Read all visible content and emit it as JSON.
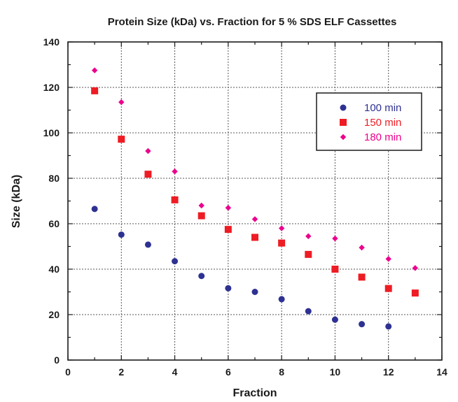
{
  "chart_data": {
    "type": "scatter",
    "title": "Protein Size (kDa) vs. Fraction for 5 % SDS ELF Cassettes",
    "xlabel": "Fraction",
    "ylabel": "Size (kDa)",
    "xlim": [
      0,
      14
    ],
    "ylim": [
      0,
      140
    ],
    "xticks": [
      0,
      2,
      4,
      6,
      8,
      10,
      12,
      14
    ],
    "yticks": [
      0,
      20,
      40,
      60,
      80,
      100,
      120,
      140
    ],
    "grid": true,
    "legend_position": "top-right",
    "series": [
      {
        "name": "100 min",
        "marker": "circle",
        "color": "#2e3192",
        "x": [
          1,
          2,
          3,
          4,
          5,
          6,
          7,
          8,
          9,
          10,
          11,
          12
        ],
        "y": [
          66.5,
          55.2,
          50.8,
          43.5,
          37,
          31.6,
          30,
          26.8,
          21.5,
          17.8,
          15.8,
          14.8
        ]
      },
      {
        "name": "150 min",
        "marker": "square",
        "color": "#ee1c24",
        "x": [
          1,
          2,
          3,
          4,
          5,
          6,
          7,
          8,
          9,
          10,
          11,
          12,
          13
        ],
        "y": [
          118.5,
          97.2,
          81.8,
          70.5,
          63.5,
          57.5,
          54,
          51.5,
          46.5,
          40,
          36.5,
          31.5,
          29.5
        ]
      },
      {
        "name": "180 min",
        "marker": "diamond",
        "color": "#ec008c",
        "x": [
          1,
          2,
          3,
          4,
          5,
          6,
          7,
          8,
          9,
          10,
          11,
          12,
          13
        ],
        "y": [
          127.5,
          113.5,
          92,
          83,
          68,
          67,
          62,
          58,
          54.5,
          53.5,
          49.5,
          44.5,
          40.5
        ]
      }
    ]
  }
}
